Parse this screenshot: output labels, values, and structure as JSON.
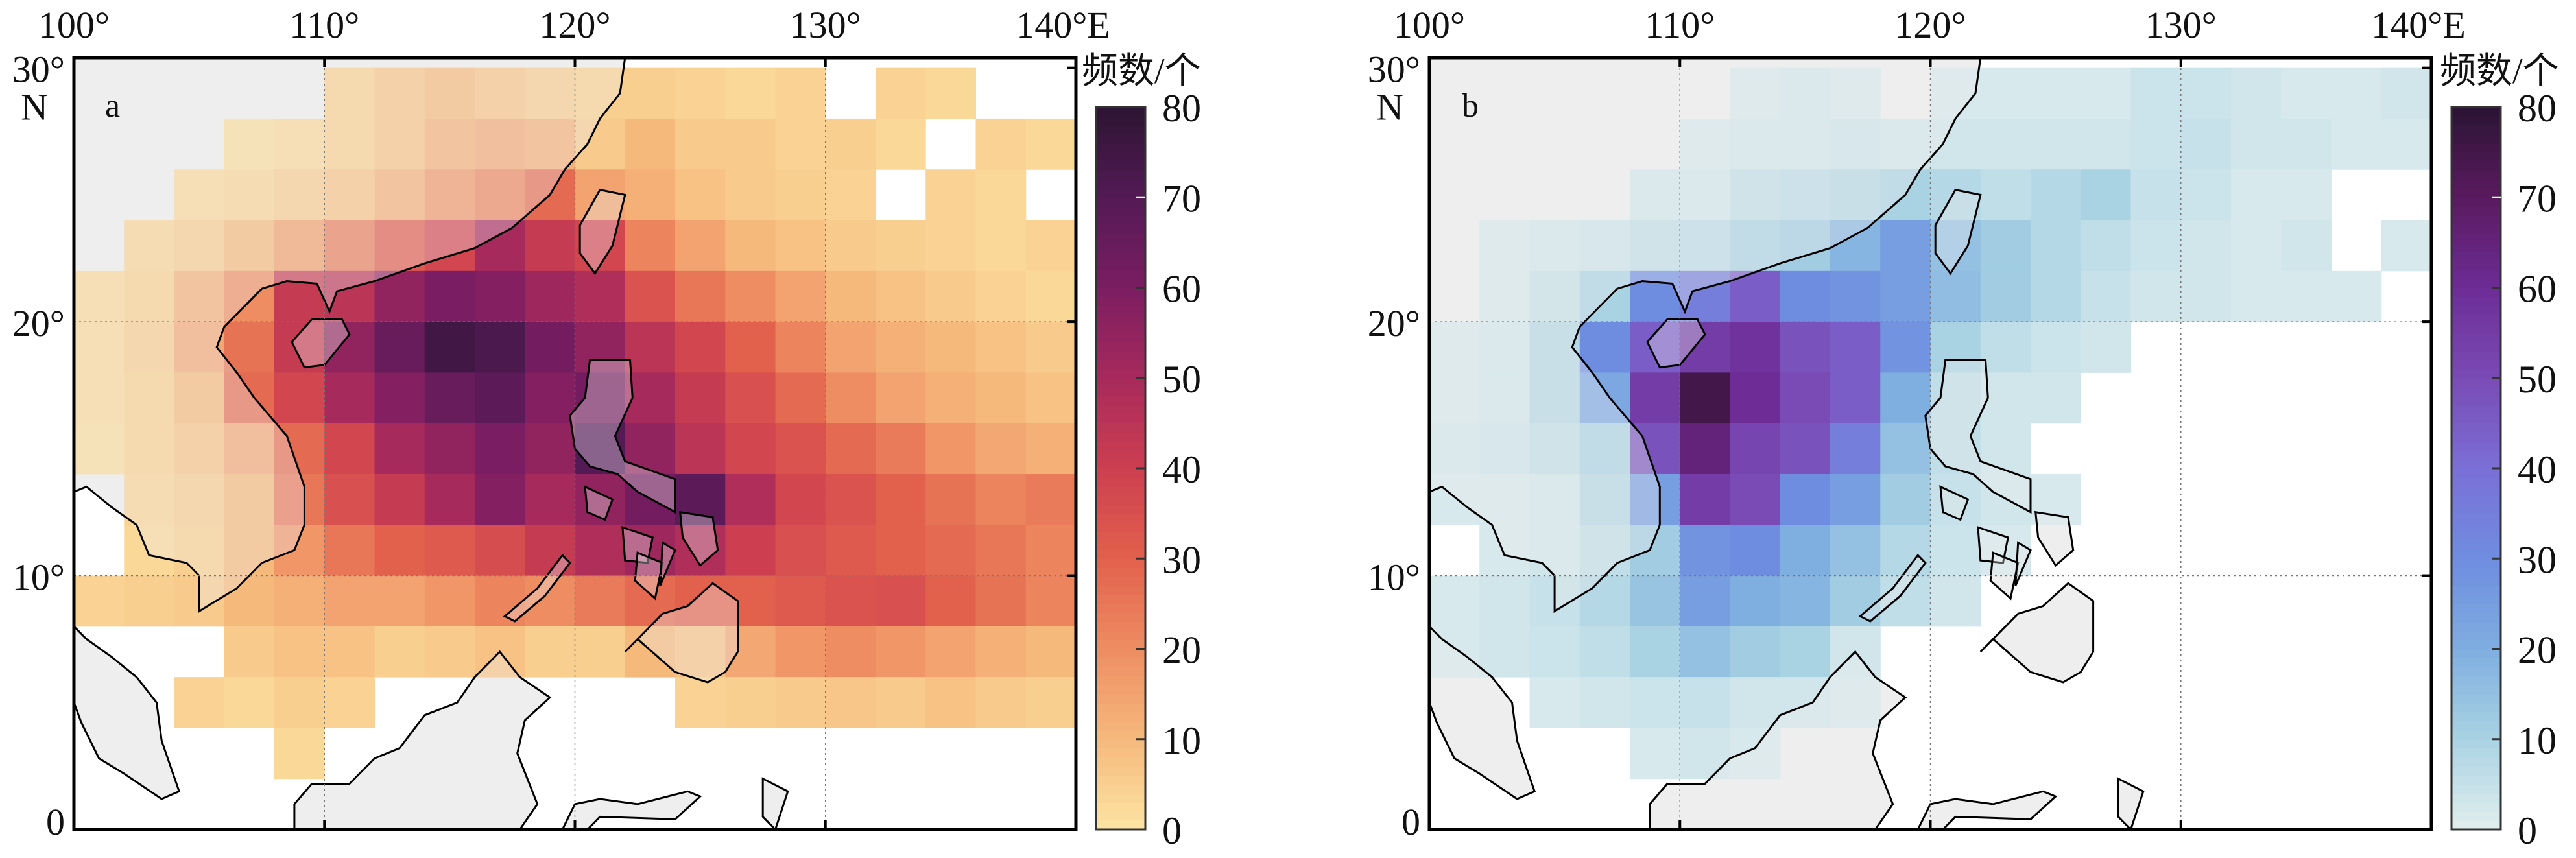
{
  "chart_data": [
    {
      "type": "heatmap",
      "panel_label": "a",
      "colorbar_title": "频数/个",
      "colorbar_ticks": [
        "0",
        "10",
        "20",
        "30",
        "40",
        "50",
        "60",
        "70",
        "80"
      ],
      "clim": [
        0,
        80
      ],
      "colors": [
        "#fce5a4",
        "#f6b97c",
        "#ee8d62",
        "#e2614d",
        "#cd3f50",
        "#a72a5c",
        "#7b1d62",
        "#541a56",
        "#2d1433"
      ],
      "x_tick_labels": [
        "100°",
        "110°",
        "120°",
        "130°",
        "140°E"
      ],
      "y_tick_labels": [
        "0",
        "10°",
        "20°",
        "30°",
        "N"
      ],
      "xlim": [
        100,
        140
      ],
      "ylim": [
        0,
        30.4
      ],
      "cell_size_deg": 2,
      "lon_starts": [
        100,
        102,
        104,
        106,
        108,
        110,
        112,
        114,
        116,
        118,
        120,
        122,
        124,
        126,
        128,
        130,
        132,
        134,
        136,
        138
      ],
      "lat_starts_north_to_south": [
        28,
        26,
        24,
        22,
        20,
        18,
        16,
        14,
        12,
        10,
        8,
        6,
        4,
        2,
        0
      ],
      "values": [
        [
          null,
          null,
          null,
          null,
          null,
          5,
          8,
          10,
          8,
          6,
          5,
          5,
          4,
          3,
          4,
          null,
          4,
          3,
          null,
          null
        ],
        [
          null,
          null,
          null,
          2,
          3,
          5,
          8,
          12,
          14,
          12,
          6,
          10,
          6,
          6,
          4,
          5,
          3,
          null,
          4,
          3
        ],
        [
          null,
          null,
          3,
          4,
          6,
          8,
          12,
          18,
          22,
          28,
          15,
          12,
          8,
          6,
          5,
          4,
          null,
          4,
          3,
          null
        ],
        [
          null,
          4,
          6,
          10,
          16,
          24,
          32,
          38,
          50,
          42,
          38,
          22,
          15,
          10,
          8,
          6,
          5,
          4,
          3,
          4
        ],
        [
          3,
          5,
          12,
          20,
          42,
          45,
          55,
          60,
          58,
          52,
          48,
          34,
          25,
          20,
          15,
          10,
          8,
          6,
          4,
          3
        ],
        [
          3,
          6,
          14,
          26,
          42,
          55,
          65,
          75,
          72,
          62,
          55,
          45,
          38,
          30,
          22,
          15,
          12,
          10,
          8,
          6
        ],
        [
          3,
          5,
          10,
          28,
          38,
          50,
          58,
          65,
          68,
          58,
          62,
          50,
          42,
          35,
          28,
          20,
          15,
          12,
          10,
          8
        ],
        [
          2,
          5,
          8,
          14,
          28,
          38,
          50,
          55,
          60,
          55,
          70,
          55,
          45,
          38,
          34,
          28,
          24,
          18,
          14,
          12
        ],
        [
          null,
          4,
          6,
          10,
          25,
          35,
          42,
          50,
          58,
          50,
          55,
          62,
          68,
          48,
          38,
          34,
          30,
          26,
          22,
          24
        ],
        [
          null,
          3,
          5,
          10,
          18,
          25,
          30,
          32,
          36,
          42,
          48,
          52,
          48,
          40,
          35,
          32,
          30,
          28,
          25,
          22
        ],
        [
          4,
          5,
          6,
          10,
          12,
          15,
          15,
          18,
          22,
          20,
          24,
          28,
          30,
          30,
          32,
          34,
          35,
          30,
          26,
          22
        ],
        [
          null,
          null,
          null,
          6,
          8,
          8,
          5,
          6,
          8,
          5,
          5,
          10,
          8,
          14,
          18,
          20,
          18,
          15,
          12,
          10
        ],
        [
          null,
          null,
          4,
          3,
          5,
          4,
          null,
          null,
          null,
          null,
          null,
          null,
          4,
          5,
          6,
          7,
          6,
          8,
          6,
          5
        ],
        [
          null,
          null,
          null,
          null,
          3,
          null,
          null,
          null,
          null,
          null,
          null,
          null,
          null,
          null,
          null,
          null,
          null,
          null,
          null,
          null
        ],
        [
          null,
          null,
          null,
          null,
          null,
          null,
          null,
          null,
          null,
          null,
          null,
          null,
          null,
          null,
          null,
          null,
          null,
          null,
          null,
          null
        ]
      ]
    },
    {
      "type": "heatmap",
      "panel_label": "b",
      "colorbar_title": "频数/个",
      "colorbar_ticks": [
        "0",
        "10",
        "20",
        "30",
        "40",
        "50",
        "60",
        "70",
        "80"
      ],
      "clim": [
        0,
        80
      ],
      "colors": [
        "#e2eeee",
        "#a9d3e3",
        "#7faee0",
        "#6f8de0",
        "#7a6fd6",
        "#7a4bb5",
        "#6d2c96",
        "#5a1a5f",
        "#2b1434"
      ],
      "x_tick_labels": [
        "100°",
        "110°",
        "120°",
        "130°",
        "140°E"
      ],
      "y_tick_labels": [
        "0",
        "10°",
        "20°",
        "30°",
        "N"
      ],
      "xlim": [
        100,
        140
      ],
      "ylim": [
        0,
        30.4
      ],
      "cell_size_deg": 2,
      "lon_starts": [
        100,
        102,
        104,
        106,
        108,
        110,
        112,
        114,
        116,
        118,
        120,
        122,
        124,
        126,
        128,
        130,
        132,
        134,
        136,
        138
      ],
      "lat_starts_north_to_south": [
        28,
        26,
        24,
        22,
        20,
        18,
        16,
        14,
        12,
        10,
        8,
        6,
        4,
        2,
        0
      ],
      "values": [
        [
          null,
          null,
          null,
          null,
          null,
          null,
          2,
          3,
          2,
          null,
          2,
          2,
          2,
          2,
          4,
          4,
          3,
          2,
          2,
          3
        ],
        [
          null,
          null,
          null,
          null,
          null,
          2,
          3,
          3,
          4,
          3,
          3,
          3,
          3,
          3,
          4,
          5,
          3,
          3,
          2,
          2
        ],
        [
          null,
          null,
          null,
          null,
          3,
          3,
          6,
          7,
          8,
          10,
          8,
          6,
          8,
          10,
          5,
          4,
          2,
          2,
          null,
          null
        ],
        [
          null,
          2,
          3,
          4,
          6,
          7,
          10,
          12,
          18,
          25,
          15,
          12,
          8,
          6,
          4,
          3,
          2,
          3,
          null,
          2
        ],
        [
          null,
          2,
          5,
          10,
          30,
          35,
          45,
          30,
          28,
          25,
          16,
          12,
          8,
          5,
          3,
          3,
          2,
          2,
          2,
          null
        ],
        [
          2,
          3,
          8,
          30,
          45,
          55,
          58,
          48,
          45,
          28,
          10,
          6,
          4,
          3,
          null,
          null,
          null,
          null,
          null,
          null
        ],
        [
          2,
          3,
          8,
          22,
          55,
          75,
          60,
          50,
          45,
          20,
          6,
          3,
          3,
          null,
          null,
          null,
          null,
          null,
          null,
          null
        ],
        [
          3,
          4,
          6,
          10,
          48,
          65,
          52,
          48,
          35,
          15,
          6,
          3,
          null,
          null,
          null,
          null,
          null,
          null,
          null,
          null
        ],
        [
          2,
          2,
          3,
          8,
          25,
          55,
          50,
          30,
          25,
          12,
          5,
          3,
          2,
          null,
          null,
          null,
          null,
          null,
          null,
          null
        ],
        [
          null,
          2,
          3,
          6,
          12,
          28,
          30,
          20,
          15,
          8,
          4,
          2,
          null,
          null,
          null,
          null,
          null,
          null,
          null,
          null
        ],
        [
          2,
          3,
          5,
          8,
          14,
          25,
          20,
          18,
          12,
          6,
          3,
          null,
          null,
          null,
          null,
          null,
          null,
          null,
          null,
          null
        ],
        [
          2,
          3,
          4,
          6,
          10,
          15,
          12,
          10,
          3,
          null,
          null,
          null,
          null,
          null,
          null,
          null,
          null,
          null,
          null,
          null
        ],
        [
          null,
          null,
          2,
          3,
          4,
          5,
          3,
          3,
          2,
          null,
          null,
          null,
          null,
          null,
          null,
          null,
          null,
          null,
          null,
          null
        ],
        [
          null,
          null,
          null,
          null,
          2,
          3,
          2,
          null,
          null,
          null,
          null,
          null,
          null,
          null,
          null,
          null,
          null,
          null,
          null,
          null
        ],
        [
          null,
          null,
          null,
          null,
          null,
          null,
          null,
          null,
          null,
          null,
          null,
          null,
          null,
          null,
          null,
          null,
          null,
          null,
          null,
          null
        ]
      ]
    }
  ]
}
